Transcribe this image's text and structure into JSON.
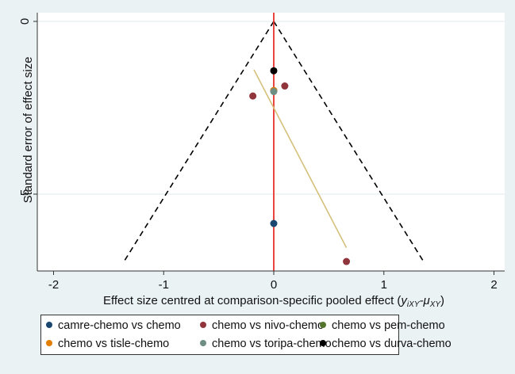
{
  "chart_data": {
    "type": "scatter",
    "title": "",
    "xlabel": "Effect size centred at comparison-specific pooled effect (",
    "xlabel_math": "y",
    "xlabel_sub1": "iXY",
    "xlabel_dash": "-μ",
    "xlabel_sub2": "XY",
    "xlabel_end": ")",
    "ylabel": "Standard error of effect size",
    "xlim": [
      -2,
      2
    ],
    "ylim": [
      0,
      0.72
    ],
    "y_reversed": true,
    "xticks": [
      "-2",
      "-1",
      "0",
      "1",
      "2"
    ],
    "yticks": [
      "0",
      ".5"
    ],
    "grid": "horizontal at y ticks",
    "legend_position": "bottom",
    "series": [
      {
        "name": "camre-chemo vs chemo",
        "color": "#1a476f",
        "points": [
          [
            0,
            0.585
          ]
        ]
      },
      {
        "name": "chemo vs nivo-chemo",
        "color": "#90353b",
        "points": [
          [
            0.1,
            0.187
          ],
          [
            -0.19,
            0.216
          ],
          [
            0.66,
            0.695
          ]
        ]
      },
      {
        "name": "chemo vs pem-chemo",
        "color": "#55752f",
        "points": [
          [
            0,
            0.2
          ]
        ]
      },
      {
        "name": "chemo vs tisle-chemo",
        "color": "#e37e00",
        "points": [
          [
            0,
            0.2
          ]
        ]
      },
      {
        "name": "chemo vs toripa-chemo",
        "color": "#6e8e84",
        "points": [
          [
            0,
            0.203
          ]
        ]
      },
      {
        "name": "chemo vs durva-chemo",
        "color": "#000000",
        "points": [
          [
            0,
            0.143
          ]
        ]
      }
    ],
    "reference_line": {
      "x": 0,
      "color": "#e8302a"
    },
    "funnel": {
      "apex": [
        0,
        0
      ],
      "base_se": 0.7,
      "base_half_width": 1.37,
      "style": "dashed",
      "color": "#000000"
    },
    "regression_line": {
      "from": [
        -0.18,
        0.14
      ],
      "to": [
        0.66,
        0.655
      ],
      "color": "#d4c07a"
    }
  }
}
